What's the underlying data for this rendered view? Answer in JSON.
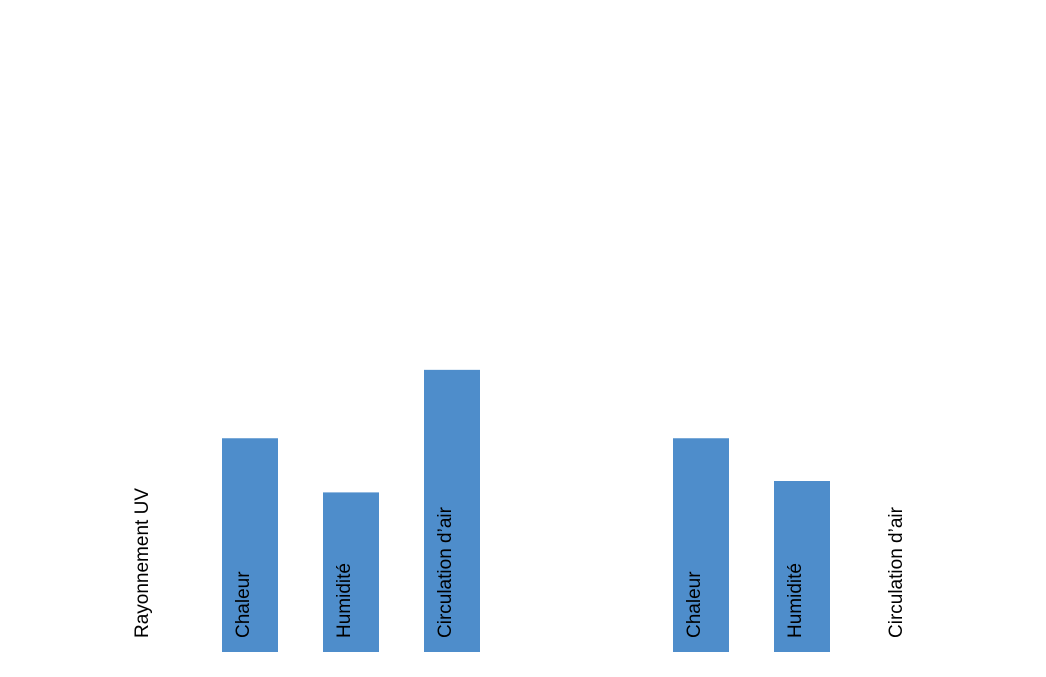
{
  "chart_data": {
    "type": "bar",
    "title": "",
    "xlabel": "",
    "ylabel": "",
    "grid": false,
    "legend": "none",
    "bar_color": "#4e8dcb",
    "label_color": "#000000",
    "ylim": [
      0,
      100
    ],
    "groups": [
      {
        "categories": [
          "Rayonnement UV",
          "Chaleur",
          "Humidité",
          "Circulation d’air"
        ],
        "values": [
          0,
          75,
          56,
          99
        ]
      },
      {
        "categories": [
          "Chaleur",
          "Humidité",
          "Circulation d’air"
        ],
        "values": [
          75,
          60,
          0
        ]
      }
    ]
  }
}
